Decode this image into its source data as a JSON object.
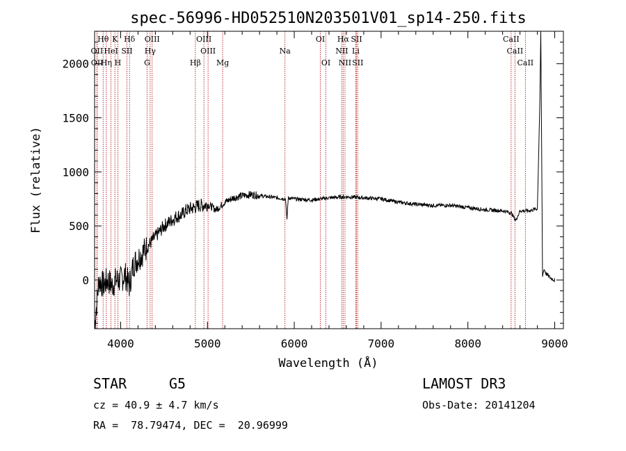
{
  "chart_data": {
    "type": "line",
    "title": "spec-56996-HD052510N203501V01_sp14-250.fits",
    "xlabel": "Wavelength (Å)",
    "ylabel": "Flux (relative)",
    "xlim": [
      3700,
      9100
    ],
    "ylim": [
      -450,
      2300
    ],
    "xticks": [
      4000,
      5000,
      6000,
      7000,
      8000,
      9000
    ],
    "yticks": [
      0,
      500,
      1000,
      1500,
      2000
    ],
    "series": [
      {
        "name": "spectrum",
        "x": [
          3700,
          3750,
          3800,
          3850,
          3900,
          3950,
          4000,
          4050,
          4100,
          4150,
          4200,
          4250,
          4300,
          4350,
          4400,
          4450,
          4500,
          4550,
          4600,
          4650,
          4700,
          4750,
          4800,
          4850,
          4900,
          4950,
          5000,
          5100,
          5200,
          5300,
          5400,
          5500,
          5600,
          5700,
          5800,
          5900,
          5915,
          5930,
          6000,
          6200,
          6400,
          6600,
          6800,
          7000,
          7200,
          7400,
          7600,
          7800,
          8000,
          8200,
          8400,
          8500,
          8550,
          8600,
          8660,
          8700,
          8750,
          8800,
          8830,
          8840,
          8850,
          8860,
          8870,
          8880,
          8900,
          8950,
          9000
        ],
        "y": [
          -420,
          0,
          -50,
          0,
          -50,
          0,
          0,
          50,
          -50,
          150,
          200,
          250,
          300,
          350,
          400,
          450,
          500,
          530,
          560,
          590,
          600,
          640,
          660,
          670,
          690,
          690,
          700,
          650,
          720,
          760,
          780,
          790,
          780,
          770,
          760,
          750,
          550,
          760,
          750,
          740,
          760,
          770,
          760,
          750,
          720,
          700,
          690,
          690,
          670,
          650,
          640,
          620,
          550,
          640,
          640,
          640,
          650,
          660,
          1700,
          2300,
          1200,
          30,
          80,
          100,
          60,
          20,
          0
        ]
      }
    ],
    "lines": [
      {
        "label": "Hθ",
        "wavelength": 3798,
        "row": 0
      },
      {
        "label": "K",
        "wavelength": 3934,
        "row": 0
      },
      {
        "label": "Hδ",
        "wavelength": 4102,
        "row": 0
      },
      {
        "label": "OIII",
        "wavelength": 4363,
        "row": 0
      },
      {
        "label": "OIII",
        "wavelength": 4959,
        "row": 0
      },
      {
        "label": "OI",
        "wavelength": 6300,
        "row": 0
      },
      {
        "label": "Hα",
        "wavelength": 6563,
        "row": 0
      },
      {
        "label": "SII",
        "wavelength": 6717,
        "row": 0
      },
      {
        "label": "CaII",
        "wavelength": 8498,
        "row": 0
      },
      {
        "label": "OII",
        "wavelength": 3727,
        "row": 1
      },
      {
        "label": "HeI",
        "wavelength": 3889,
        "row": 1
      },
      {
        "label": "SII",
        "wavelength": 4072,
        "row": 1
      },
      {
        "label": "Hγ",
        "wavelength": 4340,
        "row": 1
      },
      {
        "label": "OIII",
        "wavelength": 5007,
        "row": 1
      },
      {
        "label": "NII",
        "wavelength": 6548,
        "row": 1
      },
      {
        "label": "Li",
        "wavelength": 6708,
        "row": 1
      },
      {
        "label": "CaII",
        "wavelength": 8542,
        "row": 1
      },
      {
        "label": "OII",
        "wavelength": 3729,
        "row": 2
      },
      {
        "label": "Hη",
        "wavelength": 3835,
        "row": 2
      },
      {
        "label": "H",
        "wavelength": 3968,
        "row": 2
      },
      {
        "label": "G",
        "wavelength": 4305,
        "row": 2
      },
      {
        "label": "Hβ",
        "wavelength": 4861,
        "row": 2
      },
      {
        "label": "Mg",
        "wavelength": 5175,
        "row": 2
      },
      {
        "label": "Na",
        "wavelength": 5893,
        "row": 1
      },
      {
        "label": "OI",
        "wavelength": 6364,
        "row": 2
      },
      {
        "label": "NII",
        "wavelength": 6584,
        "row": 2
      },
      {
        "label": "SII",
        "wavelength": 6731,
        "row": 2
      },
      {
        "label": "CaII",
        "wavelength": 8662,
        "row": 2
      }
    ]
  },
  "info": {
    "object_class": "STAR",
    "subclass": "G5",
    "survey": "LAMOST DR3",
    "redshift": "cz = 40.9 ± 4.7 km/s",
    "obs_date": "Obs-Date: 20141204",
    "coords": "RA =  78.79474, DEC =  20.96999"
  }
}
